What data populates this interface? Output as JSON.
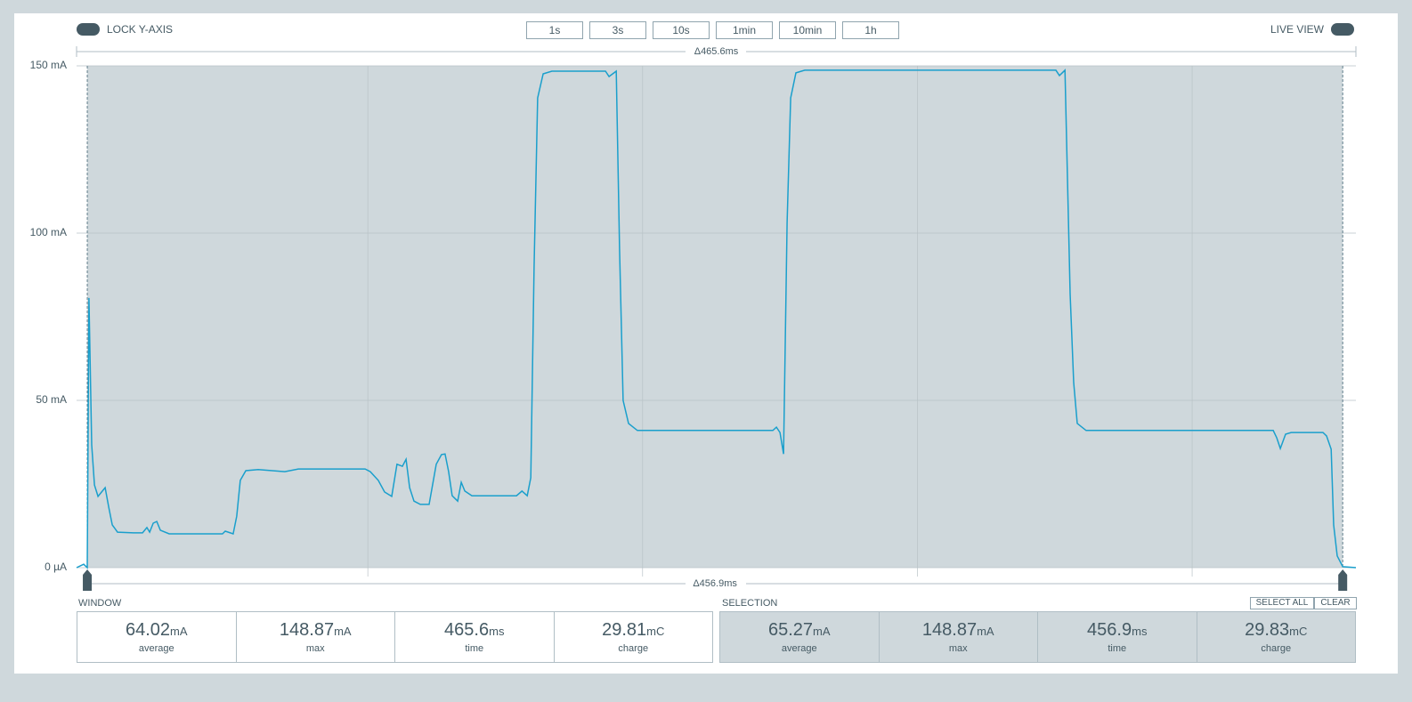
{
  "toolbar": {
    "lock_y_axis": "LOCK Y-AXIS",
    "zoom_buttons": [
      "1s",
      "3s",
      "10s",
      "1min",
      "10min",
      "1h"
    ],
    "live_view": "LIVE VIEW"
  },
  "chart_data": {
    "type": "line",
    "window_label": "Δ465.6ms",
    "selection_label": "Δ456.9ms",
    "color": "#1a9fcc",
    "selection_color": "#cfd8dc",
    "xlim": [
      0,
      465.6
    ],
    "ylim": [
      0,
      150
    ],
    "yticks": [
      {
        "value": 0,
        "label": "0 µA"
      },
      {
        "value": 50,
        "label": "50 mA"
      },
      {
        "value": 100,
        "label": "100 mA"
      },
      {
        "value": 150,
        "label": "150 mA"
      }
    ],
    "xgrid": [
      106,
      206,
      306,
      406
    ],
    "grid": true,
    "selection": [
      3.9,
      460.8
    ],
    "x": [
      0,
      2.6,
      3.9,
      4.5,
      5.5,
      6.5,
      7.8,
      9.1,
      10.4,
      11.7,
      13.0,
      14.9,
      20.7,
      24.0,
      25.6,
      26.6,
      27.9,
      29.2,
      30.5,
      33.7,
      53.1,
      54.1,
      57.0,
      58.3,
      59.6,
      61.6,
      66.1,
      75.8,
      80.7,
      105.0,
      106.9,
      109.8,
      112.1,
      114.7,
      116.6,
      118.6,
      119.9,
      121.2,
      122.8,
      125.1,
      128.3,
      130.9,
      132.8,
      134.1,
      135.4,
      136.7,
      138.7,
      140.0,
      141.3,
      143.9,
      160.1,
      162.1,
      164.0,
      165.3,
      166.5,
      167.8,
      169.8,
      173.0,
      192.5,
      193.8,
      196.4,
      197.6,
      198.9,
      200.9,
      204.1,
      218.4,
      253.4,
      254.7,
      256.0,
      257.3,
      258.6,
      259.9,
      261.8,
      265.0,
      296.2,
      356.4,
      357.7,
      359.7,
      361.6,
      362.9,
      364.2,
      367.4,
      435.5,
      436.8,
      438.1,
      440.0,
      442.0,
      453.6,
      454.9,
      456.6,
      457.5,
      458.8,
      460.8,
      465.6
    ],
    "values": [
      0,
      1,
      0,
      80.6,
      36.7,
      24.7,
      21.3,
      22.6,
      23.9,
      18.1,
      12.8,
      10.6,
      10.4,
      10.4,
      12.0,
      10.6,
      13.3,
      13.8,
      11.2,
      10.1,
      10.1,
      10.9,
      10.1,
      15.4,
      26.1,
      29.0,
      29.3,
      28.7,
      29.5,
      29.5,
      28.7,
      26.1,
      22.6,
      21.3,
      30.9,
      30.3,
      32.4,
      23.9,
      19.9,
      18.9,
      18.9,
      30.9,
      33.8,
      34.0,
      28.7,
      21.5,
      19.9,
      25.5,
      22.9,
      21.5,
      21.5,
      22.9,
      21.5,
      26.9,
      89.9,
      140.4,
      147.6,
      148.4,
      148.4,
      146.8,
      148.4,
      95.2,
      50.0,
      43.1,
      41.0,
      41.0,
      41.0,
      42.0,
      40.4,
      34.0,
      103.2,
      140.4,
      147.9,
      148.7,
      148.7,
      148.7,
      147.1,
      148.7,
      81.9,
      55.3,
      43.1,
      41.0,
      41.0,
      38.8,
      35.6,
      39.9,
      40.4,
      40.4,
      39.4,
      35.4,
      12.8,
      3.5,
      0.3,
      0
    ]
  },
  "window_stats": {
    "title": "WINDOW",
    "stats": [
      {
        "value": "64.02",
        "unit": "mA",
        "label": "average"
      },
      {
        "value": "148.87",
        "unit": "mA",
        "label": "max"
      },
      {
        "value": "465.6",
        "unit": "ms",
        "label": "time"
      },
      {
        "value": "29.81",
        "unit": "mC",
        "label": "charge"
      }
    ]
  },
  "selection_stats": {
    "title": "SELECTION",
    "buttons": [
      "SELECT ALL",
      "CLEAR"
    ],
    "stats": [
      {
        "value": "65.27",
        "unit": "mA",
        "label": "average"
      },
      {
        "value": "148.87",
        "unit": "mA",
        "label": "max"
      },
      {
        "value": "456.9",
        "unit": "ms",
        "label": "time"
      },
      {
        "value": "29.83",
        "unit": "mC",
        "label": "charge"
      }
    ]
  }
}
